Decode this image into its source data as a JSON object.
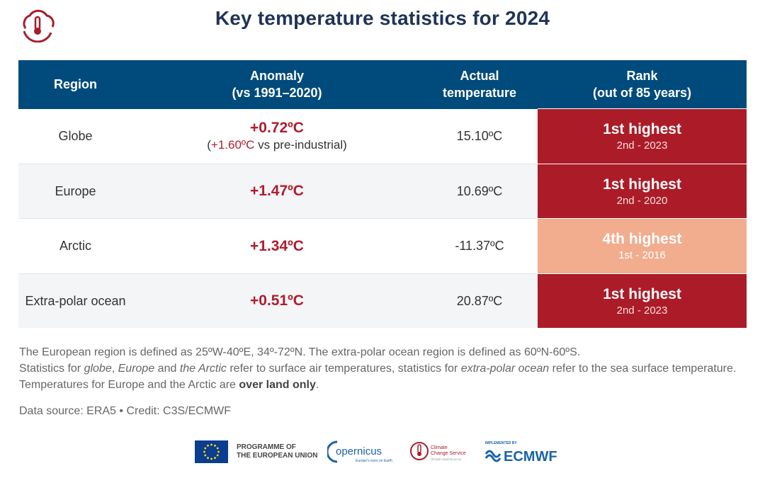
{
  "header": {
    "title": "Key temperature statistics for 2024"
  },
  "table": {
    "columns": [
      "Region",
      "Anomaly\n(vs 1991–2020)",
      "Actual\ntemperature",
      "Rank\n(out of 85 years)"
    ],
    "rows": [
      {
        "region": "Globe",
        "anomaly": "+0.72ºC",
        "anomaly_sub_red": "+1.60ºC",
        "anomaly_sub_rest": " vs pre-industrial)",
        "actual": "15.10ºC",
        "rank": "1st highest",
        "rank_sub": "2nd - 2023",
        "rank_color": "#ab1c28"
      },
      {
        "region": "Europe",
        "anomaly": "+1.47ºC",
        "actual": "10.69ºC",
        "rank": "1st highest",
        "rank_sub": "2nd - 2020",
        "rank_color": "#ab1c28"
      },
      {
        "region": "Arctic",
        "anomaly": "+1.34ºC",
        "actual": "-11.37ºC",
        "rank": "4th highest",
        "rank_sub": "1st - 2016",
        "rank_color": "#f1ad8e"
      },
      {
        "region": "Extra-polar ocean",
        "anomaly": "+0.51ºC",
        "actual": "20.87ºC",
        "rank": "1st highest",
        "rank_sub": "2nd - 2023",
        "rank_color": "#ab1c28"
      }
    ]
  },
  "notes": {
    "line1": "The European region is defined as 25ºW-40ºE, 34º-72ºN. The extra-polar ocean region is defined as 60ºN-60ºS.",
    "p2_a": "Statistics for ",
    "p2_globe": "globe",
    "p2_b": ", ",
    "p2_europe": "Europe",
    "p2_c": " and ",
    "p2_arctic": "the Arctic",
    "p2_d": " refer to surface air temperatures, statistics for ",
    "p2_ocean": "extra-polar ocean",
    "p2_e": " refer to the sea surface temperature. Temperatures for Europe and the Arctic are ",
    "p2_bold": "over land only",
    "p2_f": "."
  },
  "source": "Data source: ERA5 • Credit: C3S/ECMWF",
  "logos": {
    "eu_text": "PROGRAMME OF\nTHE EUROPEAN UNION",
    "copernicus": "opernicus",
    "copernicus_tag": "Europe's eyes on Earth",
    "c3s_line1": "Climate",
    "c3s_line2": "Change Service",
    "c3s_url": "climate.copernicus.eu",
    "ecmwf_top": "IMPLEMENTED BY",
    "ecmwf": "ECMWF"
  },
  "colors": {
    "header_bg": "#004b7c",
    "accent_red": "#b01c2e",
    "rank_dark": "#ab1c28",
    "rank_light": "#f1ad8e",
    "title": "#1f3455"
  }
}
